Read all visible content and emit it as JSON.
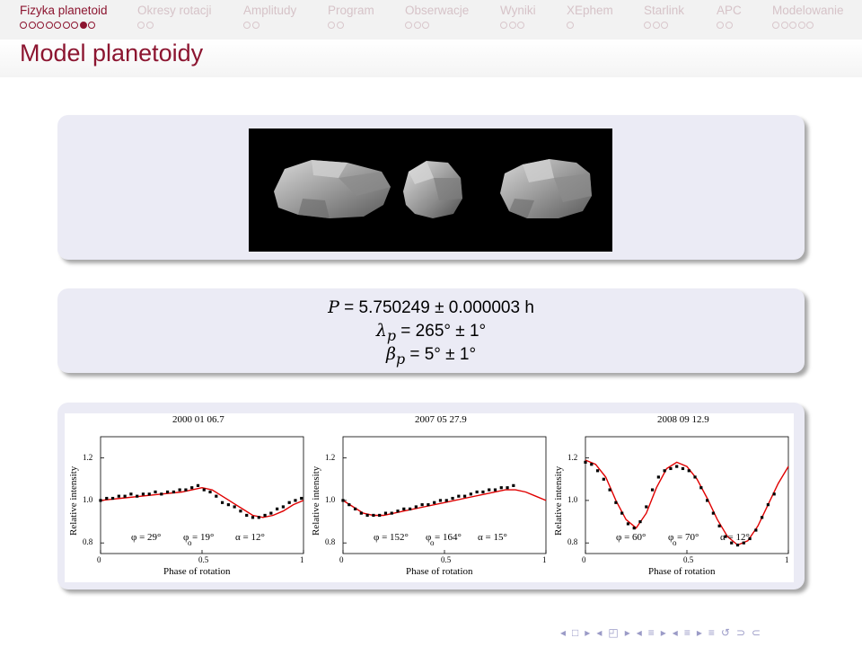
{
  "nav": {
    "sections": [
      {
        "label": "Fizyka planetoid",
        "dots": 9,
        "filled_index": 7,
        "active": true
      },
      {
        "label": "Okresy rotacji",
        "dots": 2,
        "filled_index": -1,
        "active": false
      },
      {
        "label": "Amplitudy",
        "dots": 2,
        "filled_index": -1,
        "active": false
      },
      {
        "label": "Program",
        "dots": 2,
        "filled_index": -1,
        "active": false
      },
      {
        "label": "Obserwacje",
        "dots": 3,
        "filled_index": -1,
        "active": false
      },
      {
        "label": "Wyniki",
        "dots": 3,
        "filled_index": -1,
        "active": false
      },
      {
        "label": "XEphem",
        "dots": 1,
        "filled_index": -1,
        "active": false
      },
      {
        "label": "Starlink",
        "dots": 3,
        "filled_index": -1,
        "active": false
      },
      {
        "label": "APC",
        "dots": 2,
        "filled_index": -1,
        "active": false
      },
      {
        "label": "Modelowanie",
        "dots": 5,
        "filled_index": -1,
        "active": false
      }
    ]
  },
  "frame": {
    "title": "Model planetoidy"
  },
  "formula": {
    "period_sym": "P",
    "period_val": " = 5.750249 ± 0.000003 h",
    "lambda_sym": "λ",
    "lambda_sub": "p",
    "lambda_val": " = 265° ± 1°",
    "beta_sym": "β",
    "beta_sub": "p",
    "beta_val": " = 5° ± 1°"
  },
  "accent_color": "#8c1530",
  "model_color": "#e00000",
  "beamer_nav_icons": [
    "◂",
    "□",
    "▸",
    "◂",
    "◰",
    "▸",
    "◂",
    "≡",
    "▸",
    "◂",
    "≡",
    "▸",
    "≡",
    "↺",
    "⊃",
    "⊂"
  ],
  "chart_data": [
    {
      "type": "scatter",
      "title": "2000 01 06.7",
      "xlabel": "Phase of rotation",
      "ylabel": "Relative intensity",
      "xlim": [
        0,
        1
      ],
      "ylim": [
        0.75,
        1.3
      ],
      "xticks": [
        "0",
        "0.5",
        "1"
      ],
      "yticks": [
        "0.8",
        "1.0",
        "1.2"
      ],
      "annotations": [
        "φ = 29°",
        "φ",
        "o",
        "= 19°",
        "α = 12°"
      ],
      "series": [
        {
          "type": "points",
          "x": [
            0.0,
            0.03,
            0.06,
            0.09,
            0.12,
            0.15,
            0.18,
            0.21,
            0.24,
            0.27,
            0.3,
            0.33,
            0.36,
            0.39,
            0.42,
            0.45,
            0.48,
            0.51,
            0.54,
            0.57,
            0.6,
            0.63,
            0.66,
            0.69,
            0.72,
            0.75,
            0.78,
            0.81,
            0.84,
            0.87,
            0.9,
            0.93,
            0.96,
            0.99
          ],
          "y": [
            1.0,
            1.01,
            1.01,
            1.02,
            1.02,
            1.03,
            1.02,
            1.03,
            1.03,
            1.04,
            1.03,
            1.04,
            1.04,
            1.05,
            1.05,
            1.06,
            1.07,
            1.05,
            1.04,
            1.02,
            0.99,
            0.98,
            0.97,
            0.95,
            0.93,
            0.92,
            0.92,
            0.93,
            0.94,
            0.96,
            0.97,
            0.99,
            1.0,
            1.01
          ]
        },
        {
          "type": "line",
          "x": [
            0.0,
            0.1,
            0.2,
            0.3,
            0.4,
            0.5,
            0.55,
            0.6,
            0.65,
            0.7,
            0.75,
            0.8,
            0.85,
            0.9,
            0.95,
            1.0
          ],
          "y": [
            1.0,
            1.01,
            1.02,
            1.03,
            1.04,
            1.06,
            1.05,
            1.02,
            0.99,
            0.96,
            0.93,
            0.92,
            0.93,
            0.95,
            0.98,
            1.0
          ]
        }
      ]
    },
    {
      "type": "scatter",
      "title": "2007 05 27.9",
      "xlabel": "Phase of rotation",
      "ylabel": "Relative intensity",
      "xlim": [
        0,
        1
      ],
      "ylim": [
        0.75,
        1.3
      ],
      "xticks": [
        "0",
        "0.5",
        "1"
      ],
      "yticks": [
        "0.8",
        "1.0",
        "1.2"
      ],
      "annotations": [
        "φ = 152°",
        "φ",
        "o",
        "= 164°",
        "α = 15°"
      ],
      "series": [
        {
          "type": "points",
          "x": [
            0.0,
            0.03,
            0.06,
            0.09,
            0.12,
            0.15,
            0.18,
            0.21,
            0.24,
            0.27,
            0.3,
            0.33,
            0.36,
            0.39,
            0.42,
            0.45,
            0.48,
            0.51,
            0.54,
            0.57,
            0.6,
            0.63,
            0.66,
            0.69,
            0.72,
            0.75,
            0.78,
            0.81,
            0.84
          ],
          "y": [
            1.0,
            0.98,
            0.96,
            0.94,
            0.93,
            0.93,
            0.93,
            0.94,
            0.94,
            0.95,
            0.96,
            0.96,
            0.97,
            0.98,
            0.98,
            0.99,
            1.0,
            1.0,
            1.01,
            1.02,
            1.02,
            1.03,
            1.04,
            1.04,
            1.05,
            1.05,
            1.06,
            1.06,
            1.07
          ]
        },
        {
          "type": "line",
          "x": [
            0.0,
            0.05,
            0.1,
            0.15,
            0.2,
            0.3,
            0.4,
            0.5,
            0.6,
            0.7,
            0.8,
            0.85,
            0.9,
            0.95,
            1.0
          ],
          "y": [
            1.0,
            0.97,
            0.94,
            0.93,
            0.93,
            0.95,
            0.97,
            0.99,
            1.01,
            1.03,
            1.05,
            1.05,
            1.04,
            1.02,
            1.0
          ]
        }
      ]
    },
    {
      "type": "scatter",
      "title": "2008 09 12.9",
      "xlabel": "Phase of rotation",
      "ylabel": "Relative intensity",
      "xlim": [
        0,
        1
      ],
      "ylim": [
        0.75,
        1.3
      ],
      "xticks": [
        "0",
        "0.5",
        "1"
      ],
      "yticks": [
        "0.8",
        "1.0",
        "1.2"
      ],
      "annotations": [
        "φ = 60°",
        "φ",
        "o",
        "= 70°",
        "α = 12°"
      ],
      "series": [
        {
          "type": "points",
          "x": [
            0.0,
            0.03,
            0.06,
            0.09,
            0.12,
            0.15,
            0.18,
            0.21,
            0.24,
            0.27,
            0.3,
            0.33,
            0.36,
            0.39,
            0.42,
            0.45,
            0.48,
            0.51,
            0.54,
            0.57,
            0.6,
            0.63,
            0.66,
            0.69,
            0.72,
            0.75,
            0.78,
            0.81,
            0.84,
            0.87,
            0.9,
            0.93
          ],
          "y": [
            1.18,
            1.17,
            1.14,
            1.1,
            1.05,
            0.99,
            0.94,
            0.89,
            0.87,
            0.9,
            0.97,
            1.05,
            1.11,
            1.14,
            1.15,
            1.16,
            1.15,
            1.14,
            1.11,
            1.06,
            1.0,
            0.94,
            0.88,
            0.83,
            0.8,
            0.79,
            0.8,
            0.82,
            0.86,
            0.92,
            0.98,
            1.03
          ]
        },
        {
          "type": "line",
          "x": [
            0.0,
            0.05,
            0.1,
            0.15,
            0.2,
            0.25,
            0.3,
            0.35,
            0.4,
            0.45,
            0.5,
            0.55,
            0.6,
            0.65,
            0.7,
            0.75,
            0.8,
            0.85,
            0.9,
            0.95,
            1.0
          ],
          "y": [
            1.19,
            1.17,
            1.11,
            1.0,
            0.91,
            0.87,
            0.94,
            1.06,
            1.15,
            1.18,
            1.16,
            1.1,
            1.01,
            0.91,
            0.83,
            0.79,
            0.81,
            0.88,
            0.98,
            1.08,
            1.16
          ]
        }
      ]
    }
  ]
}
